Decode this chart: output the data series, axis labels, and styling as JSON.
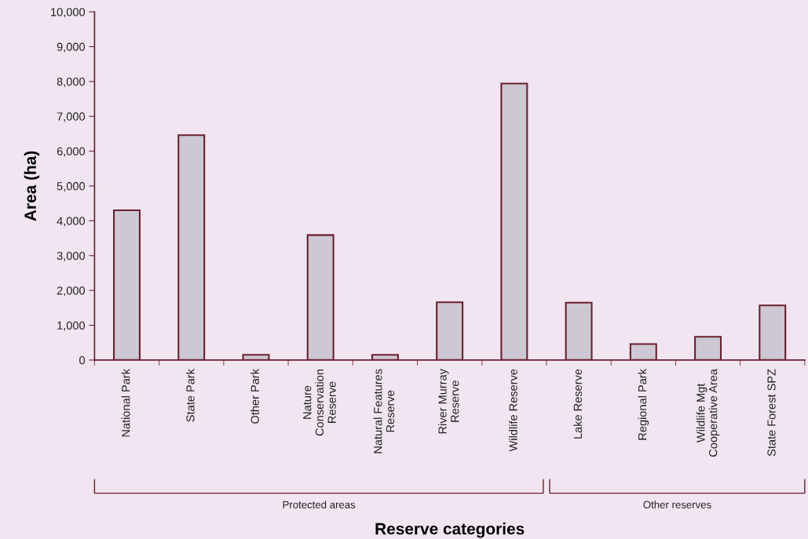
{
  "chart_data": {
    "type": "bar",
    "xlabel": "Reserve categories",
    "ylabel": "Area (ha)",
    "categories": [
      "National Park",
      "State Park",
      "Other Park",
      "Nature\nConservation\nReserve",
      "Natural Features\nReserve",
      "River Murray\nReserve",
      "Wildlife Reserve",
      "Lake Reserve",
      "Regional Park",
      "Wildlife Mgt\nCooperative Area",
      "State Forest SPZ"
    ],
    "values": [
      4300,
      6460,
      150,
      3590,
      150,
      1660,
      7940,
      1650,
      460,
      670,
      1570
    ],
    "color": "#cdc8d3",
    "ylim": [
      0,
      10000
    ],
    "yticks": [
      {
        "value": 0,
        "label": "0"
      },
      {
        "value": 1000,
        "label": "1,000"
      },
      {
        "value": 2000,
        "label": "2,000"
      },
      {
        "value": 3000,
        "label": "3,000"
      },
      {
        "value": 4000,
        "label": "4,000"
      },
      {
        "value": 5000,
        "label": "5,000"
      },
      {
        "value": 6000,
        "label": "6,000"
      },
      {
        "value": 7000,
        "label": "7,000"
      },
      {
        "value": 8000,
        "label": "8,000"
      },
      {
        "value": 9000,
        "label": "9,000"
      },
      {
        "value": 10000,
        "label": "10,000"
      }
    ],
    "grid": false,
    "legend": false,
    "annotations": [
      "Protected areas",
      "Other reserves"
    ]
  }
}
